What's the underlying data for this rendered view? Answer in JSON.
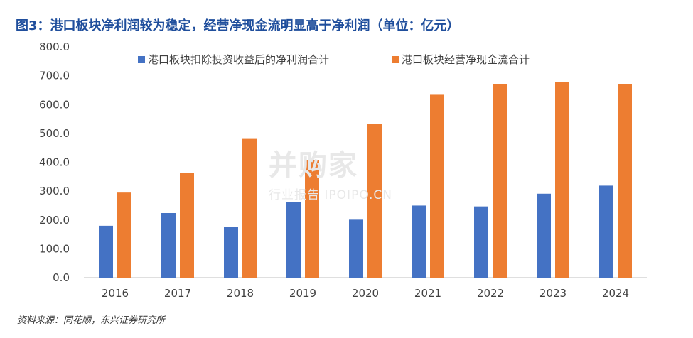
{
  "title": "图3：港口板块净利润较为稳定，经营净现金流明显高于净利润（单位：亿元）",
  "source": "资料来源：同花顺，东兴证券研究所",
  "watermark": {
    "main": "并购家",
    "sub": "行业报告 IPOIPO.CN"
  },
  "colors": {
    "series1": "#4472c4",
    "series2": "#ed7d31",
    "title": "#1f4e9c"
  },
  "chart_data": {
    "type": "bar",
    "title": "图3：港口板块净利润较为稳定，经营净现金流明显高于净利润（单位：亿元）",
    "xlabel": "",
    "ylabel": "",
    "categories": [
      "2016",
      "2017",
      "2018",
      "2019",
      "2020",
      "2021",
      "2022",
      "2023",
      "2024"
    ],
    "series": [
      {
        "name": "港口板块扣除投资收益后的净利润合计",
        "values": [
          180,
          224,
          176,
          262,
          201,
          250,
          247,
          291,
          319
        ]
      },
      {
        "name": "港口板块经营净现金流合计",
        "values": [
          295,
          363,
          481,
          408,
          533,
          634,
          670,
          678,
          672
        ]
      }
    ],
    "ylim": [
      0,
      800
    ],
    "yticks": [
      "0.0",
      "100.0",
      "200.0",
      "300.0",
      "400.0",
      "500.0",
      "600.0",
      "700.0",
      "800.0"
    ],
    "grid": false,
    "legend": "top"
  }
}
